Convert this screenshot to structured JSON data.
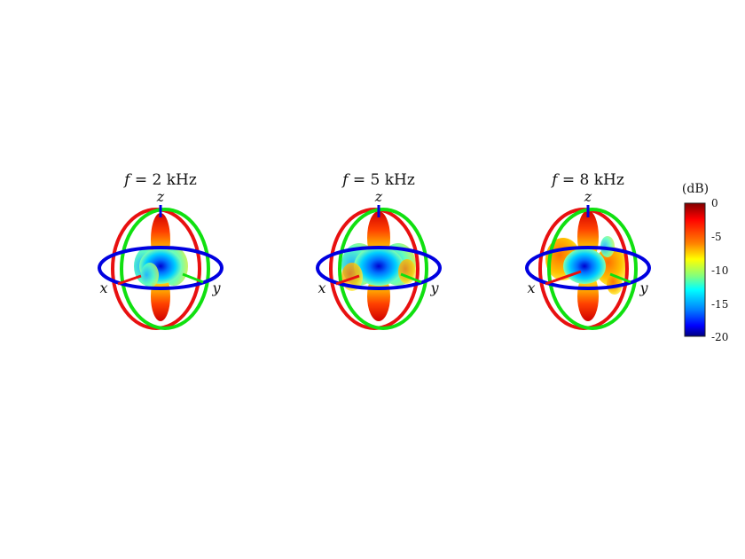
{
  "panels": [
    {
      "title_var": "f",
      "title_eq": " = 2 kHz",
      "axes": {
        "x": "x",
        "y": "y",
        "z": "z"
      }
    },
    {
      "title_var": "f",
      "title_eq": " = 5 kHz",
      "axes": {
        "x": "x",
        "y": "y",
        "z": "z"
      }
    },
    {
      "title_var": "f",
      "title_eq": " = 8 kHz",
      "axes": {
        "x": "x",
        "y": "y",
        "z": "z"
      }
    }
  ],
  "colorbar": {
    "title": "(dB)",
    "ticks": [
      "0",
      "-5",
      "-10",
      "-15",
      "-20"
    ],
    "colors": [
      "#800000",
      "#ff0000",
      "#ff8000",
      "#ffff00",
      "#80ff80",
      "#00ffff",
      "#0080ff",
      "#0000ff",
      "#000080"
    ]
  },
  "ring_colors": {
    "horizontal": "#0000e0",
    "xz": "#e81010",
    "yz": "#10e010"
  }
}
